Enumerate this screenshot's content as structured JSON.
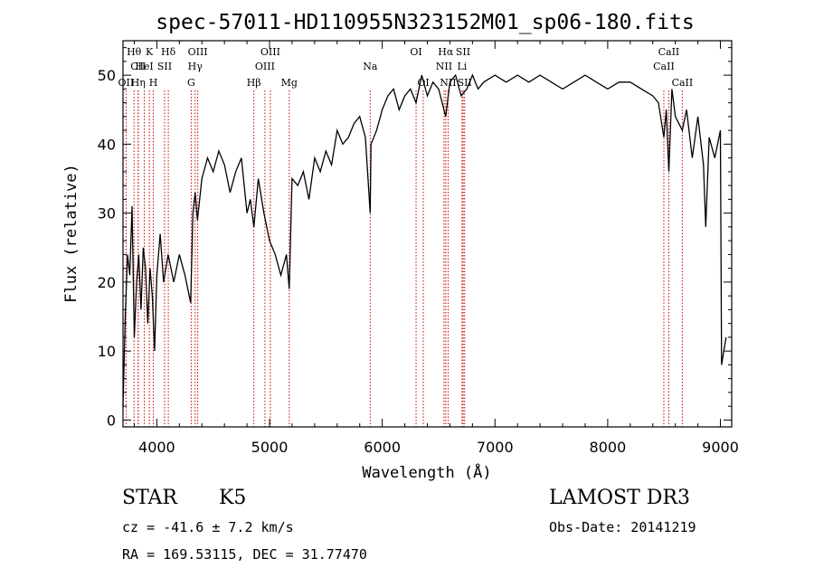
{
  "chart_data": {
    "type": "line",
    "title": "spec-57011-HD110955N323152M01_sp06-180.fits",
    "xlabel": "Wavelength (Å)",
    "ylabel": "Flux (relative)",
    "xlim": [
      3700,
      9100
    ],
    "ylim": [
      -1,
      55
    ],
    "x_ticks": [
      4000,
      5000,
      6000,
      7000,
      8000,
      9000
    ],
    "y_ticks": [
      0,
      10,
      20,
      30,
      40,
      50
    ],
    "series": [
      {
        "name": "spectrum",
        "x": [
          3700,
          3720,
          3740,
          3760,
          3780,
          3800,
          3820,
          3840,
          3860,
          3880,
          3900,
          3920,
          3940,
          3960,
          3980,
          4000,
          4030,
          4060,
          4100,
          4150,
          4200,
          4250,
          4300,
          4320,
          4340,
          4360,
          4400,
          4450,
          4500,
          4550,
          4600,
          4650,
          4700,
          4750,
          4800,
          4830,
          4861,
          4900,
          4950,
          5000,
          5050,
          5100,
          5150,
          5175,
          5200,
          5250,
          5300,
          5350,
          5400,
          5450,
          5500,
          5550,
          5600,
          5650,
          5700,
          5750,
          5800,
          5850,
          5893,
          5900,
          5950,
          6000,
          6050,
          6100,
          6150,
          6200,
          6250,
          6300,
          6350,
          6400,
          6450,
          6500,
          6563,
          6600,
          6650,
          6700,
          6750,
          6800,
          6850,
          6900,
          7000,
          7100,
          7200,
          7300,
          7400,
          7500,
          7600,
          7700,
          7800,
          7900,
          8000,
          8100,
          8200,
          8300,
          8400,
          8450,
          8498,
          8520,
          8542,
          8570,
          8600,
          8662,
          8700,
          8750,
          8800,
          8850,
          8870,
          8900,
          8950,
          9000,
          9010,
          9050
        ],
        "values": [
          2,
          15,
          24,
          21,
          31,
          12,
          20,
          24,
          16,
          25,
          22,
          14,
          22,
          18,
          10,
          21,
          27,
          20,
          24,
          20,
          24,
          21,
          17,
          30,
          33,
          29,
          35,
          38,
          36,
          39,
          37,
          33,
          36,
          38,
          30,
          32,
          28,
          35,
          30,
          26,
          24,
          21,
          24,
          19,
          35,
          34,
          36,
          32,
          38,
          36,
          39,
          37,
          42,
          40,
          41,
          43,
          44,
          41,
          30,
          40,
          42,
          45,
          47,
          48,
          45,
          47,
          48,
          46,
          50,
          47,
          49,
          48,
          44,
          49,
          50,
          47,
          48,
          50,
          48,
          49,
          50,
          49,
          50,
          49,
          50,
          49,
          48,
          49,
          50,
          49,
          48,
          49,
          49,
          48,
          47,
          46,
          41,
          45,
          36,
          48,
          44,
          42,
          45,
          38,
          44,
          37,
          28,
          41,
          38,
          42,
          8,
          12
        ]
      }
    ],
    "spectral_lines": [
      {
        "label": "Hθ",
        "wavelength": 3798,
        "row": 1
      },
      {
        "label": "CII",
        "wavelength": 3835,
        "row": 2
      },
      {
        "label": "OII",
        "wavelength": 3727,
        "row": 3
      },
      {
        "label": "Hη",
        "wavelength": 3835,
        "row": 3
      },
      {
        "label": "K",
        "wavelength": 3934,
        "row": 1
      },
      {
        "label": "HeI",
        "wavelength": 3889,
        "row": 2
      },
      {
        "label": "H",
        "wavelength": 3969,
        "row": 3
      },
      {
        "label": "Hδ",
        "wavelength": 4102,
        "row": 1
      },
      {
        "label": "SII",
        "wavelength": 4069,
        "row": 2
      },
      {
        "label": "OIII",
        "wavelength": 4363,
        "row": 1
      },
      {
        "label": "Hγ",
        "wavelength": 4340,
        "row": 2
      },
      {
        "label": "G",
        "wavelength": 4305,
        "row": 3
      },
      {
        "label": "Hβ",
        "wavelength": 4861,
        "row": 3
      },
      {
        "label": "OIII",
        "wavelength": 5007,
        "row": 1
      },
      {
        "label": "OIII",
        "wavelength": 4959,
        "row": 2
      },
      {
        "label": "Mg",
        "wavelength": 5175,
        "row": 3
      },
      {
        "label": "Na",
        "wavelength": 5893,
        "row": 2
      },
      {
        "label": "OI",
        "wavelength": 6300,
        "row": 1
      },
      {
        "label": "OI",
        "wavelength": 6364,
        "row": 3
      },
      {
        "label": "Hα",
        "wavelength": 6563,
        "row": 1
      },
      {
        "label": "NII",
        "wavelength": 6548,
        "row": 2
      },
      {
        "label": "NII",
        "wavelength": 6584,
        "row": 3
      },
      {
        "label": "SII",
        "wavelength": 6717,
        "row": 1
      },
      {
        "label": "Li",
        "wavelength": 6708,
        "row": 2
      },
      {
        "label": "SII",
        "wavelength": 6731,
        "row": 3
      },
      {
        "label": "CaII",
        "wavelength": 8542,
        "row": 1
      },
      {
        "label": "CaII",
        "wavelength": 8498,
        "row": 2
      },
      {
        "label": "CaII",
        "wavelength": 8662,
        "row": 3
      }
    ]
  },
  "info": {
    "class": "STAR",
    "subclass": "K5",
    "cz": "cz = -41.6 ± 7.2 km/s",
    "radec": "RA = 169.53115, DEC =  31.77470",
    "survey": "LAMOST DR3",
    "obsdate": "Obs-Date: 20141219"
  },
  "colors": {
    "axis": "#000000",
    "spectrum": "#000000",
    "line_marker": "#cc0000"
  }
}
